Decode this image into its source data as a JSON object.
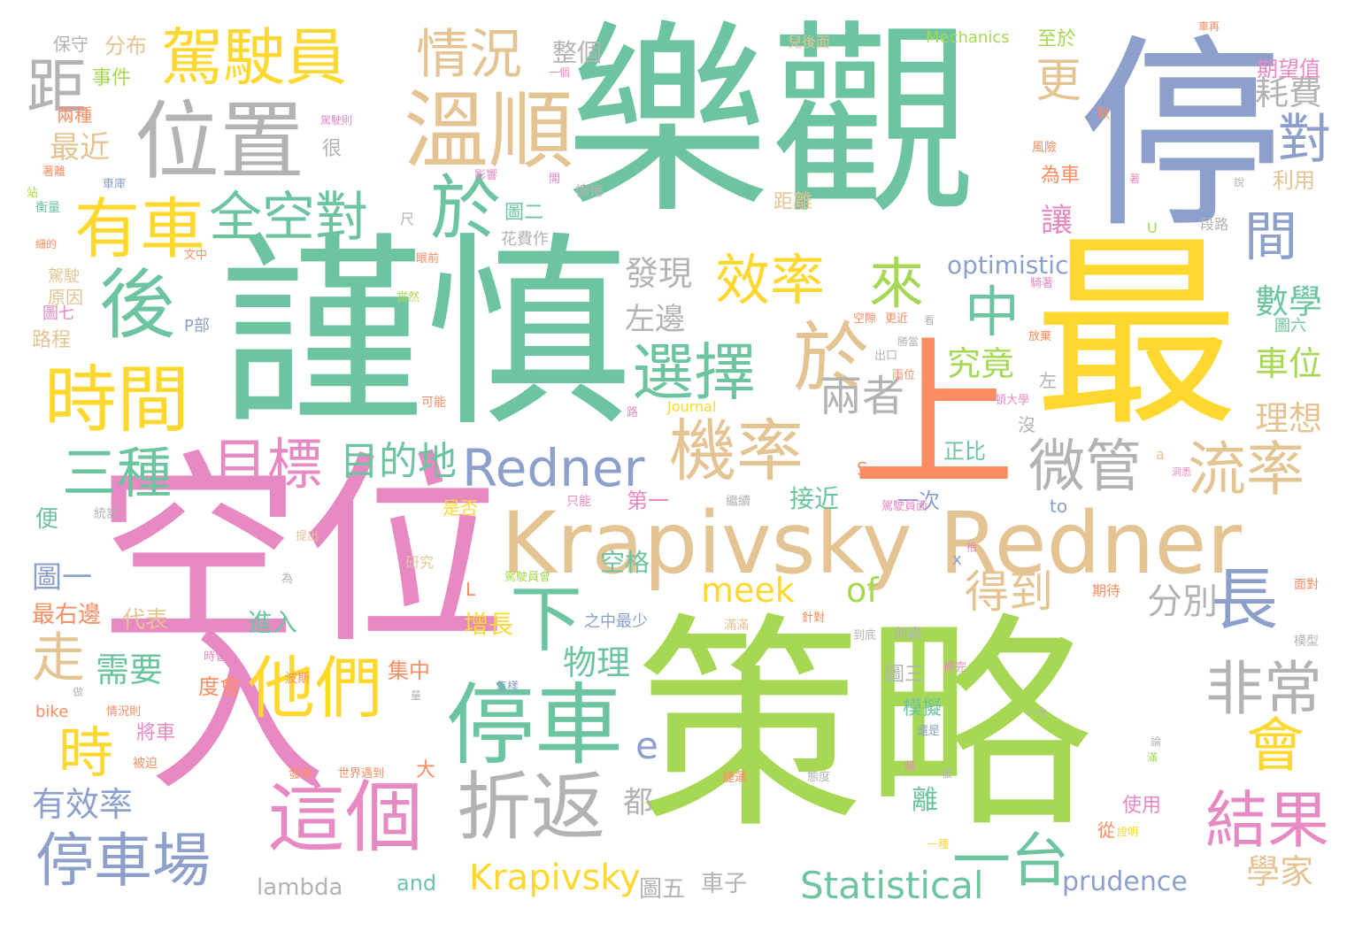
{
  "palette": {
    "green": "#6cc4a0",
    "yellow": "#fed82f",
    "lime": "#a6d854",
    "pink": "#e78ac3",
    "blue": "#8da0cb",
    "tan": "#e5c494",
    "gray": "#b3b3b3",
    "orange": "#fc8d62"
  },
  "words": [
    {
      "text": "樂觀",
      "color": "green"
    },
    {
      "text": "停",
      "color": "blue"
    },
    {
      "text": "謹慎",
      "color": "green"
    },
    {
      "text": "最",
      "color": "yellow"
    },
    {
      "text": "上",
      "color": "orange"
    },
    {
      "text": "空位",
      "color": "pink"
    },
    {
      "text": "策略",
      "color": "lime"
    },
    {
      "text": "入",
      "color": "pink"
    },
    {
      "text": "Krapivsky Redner",
      "color": "tan"
    },
    {
      "text": "位置",
      "color": "gray"
    },
    {
      "text": "溫順",
      "color": "tan"
    },
    {
      "text": "駕駛員",
      "color": "yellow"
    },
    {
      "text": "情況",
      "color": "tan"
    },
    {
      "text": "距",
      "color": "gray"
    },
    {
      "text": "有車",
      "color": "yellow"
    },
    {
      "text": "全空對",
      "color": "green"
    },
    {
      "text": "於",
      "color": "green"
    },
    {
      "text": "後",
      "color": "green"
    },
    {
      "text": "時間",
      "color": "yellow"
    },
    {
      "text": "效率",
      "color": "yellow"
    },
    {
      "text": "來",
      "color": "lime"
    },
    {
      "text": "中",
      "color": "green"
    },
    {
      "text": "於",
      "color": "tan"
    },
    {
      "text": "選擇",
      "color": "green"
    },
    {
      "text": "Redner",
      "color": "blue"
    },
    {
      "text": "機率",
      "color": "tan"
    },
    {
      "text": "三種",
      "color": "green"
    },
    {
      "text": "目標",
      "color": "pink"
    },
    {
      "text": "目的地",
      "color": "green"
    },
    {
      "text": "兩者",
      "color": "gray"
    },
    {
      "text": "微管",
      "color": "gray"
    },
    {
      "text": "流率",
      "color": "tan"
    },
    {
      "text": "更",
      "color": "tan"
    },
    {
      "text": "對",
      "color": "blue"
    },
    {
      "text": "間",
      "color": "blue"
    },
    {
      "text": "耗費",
      "color": "gray"
    },
    {
      "text": "數學",
      "color": "green"
    },
    {
      "text": "車位",
      "color": "lime"
    },
    {
      "text": "理想",
      "color": "tan"
    },
    {
      "text": "究竟",
      "color": "lime"
    },
    {
      "text": "發現",
      "color": "gray"
    },
    {
      "text": "左邊",
      "color": "gray"
    },
    {
      "text": "optimistic",
      "color": "blue"
    },
    {
      "text": "他們",
      "color": "yellow"
    },
    {
      "text": "停車",
      "color": "green"
    },
    {
      "text": "下",
      "color": "green"
    },
    {
      "text": "長",
      "color": "blue"
    },
    {
      "text": "時",
      "color": "yellow"
    },
    {
      "text": "走",
      "color": "tan"
    },
    {
      "text": "這個",
      "color": "pink"
    },
    {
      "text": "折返",
      "color": "gray"
    },
    {
      "text": "停車場",
      "color": "blue"
    },
    {
      "text": "非常",
      "color": "gray"
    },
    {
      "text": "會",
      "color": "yellow"
    },
    {
      "text": "結果",
      "color": "pink"
    },
    {
      "text": "一台",
      "color": "green"
    },
    {
      "text": "得到",
      "color": "tan"
    },
    {
      "text": "分別",
      "color": "gray"
    },
    {
      "text": "meek",
      "color": "yellow"
    },
    {
      "text": "of",
      "color": "lime"
    },
    {
      "text": "物理",
      "color": "green"
    },
    {
      "text": "需要",
      "color": "green"
    },
    {
      "text": "有效率",
      "color": "blue"
    },
    {
      "text": "Statistical",
      "color": "green"
    },
    {
      "text": "Krapivsky",
      "color": "yellow"
    },
    {
      "text": "prudence",
      "color": "blue"
    },
    {
      "text": "學家",
      "color": "tan"
    },
    {
      "text": "lambda",
      "color": "gray"
    },
    {
      "text": "and",
      "color": "green"
    },
    {
      "text": "圖五",
      "color": "gray"
    },
    {
      "text": "車子",
      "color": "gray"
    },
    {
      "text": "e",
      "color": "blue"
    },
    {
      "text": "都",
      "color": "gray"
    },
    {
      "text": "圖一",
      "color": "blue"
    },
    {
      "text": "最右邊",
      "color": "orange"
    },
    {
      "text": "代表",
      "color": "tan"
    },
    {
      "text": "進入",
      "color": "green"
    },
    {
      "text": "增長",
      "color": "yellow"
    },
    {
      "text": "空格",
      "color": "green"
    },
    {
      "text": "接近",
      "color": "green"
    },
    {
      "text": "第一",
      "color": "pink"
    },
    {
      "text": "一次",
      "color": "blue"
    },
    {
      "text": "正比",
      "color": "green"
    },
    {
      "text": "保守",
      "color": "gray"
    },
    {
      "text": "分布",
      "color": "tan"
    },
    {
      "text": "事件",
      "color": "lime"
    },
    {
      "text": "最近",
      "color": "tan"
    },
    {
      "text": "兩種",
      "color": "orange"
    },
    {
      "text": "很",
      "color": "gray"
    },
    {
      "text": "原因",
      "color": "tan"
    },
    {
      "text": "駕駛",
      "color": "tan"
    },
    {
      "text": "圖七",
      "color": "pink"
    },
    {
      "text": "路程",
      "color": "tan"
    },
    {
      "text": "整個",
      "color": "gray"
    },
    {
      "text": "圖二",
      "color": "green"
    },
    {
      "text": "距離",
      "color": "tan"
    },
    {
      "text": "讓",
      "color": "pink"
    },
    {
      "text": "為車",
      "color": "orange"
    },
    {
      "text": "利用",
      "color": "tan"
    },
    {
      "text": "期望值",
      "color": "pink"
    },
    {
      "text": "Mechanics",
      "color": "lime"
    },
    {
      "text": "至於",
      "color": "lime"
    },
    {
      "text": "兒後面",
      "color": "tan"
    },
    {
      "text": "便",
      "color": "green"
    },
    {
      "text": "圖三",
      "color": "gray"
    },
    {
      "text": "模擬",
      "color": "green"
    },
    {
      "text": "離",
      "color": "green"
    },
    {
      "text": "使用",
      "color": "pink"
    },
    {
      "text": "大",
      "color": "orange"
    },
    {
      "text": "集中",
      "color": "orange"
    },
    {
      "text": "度會",
      "color": "orange"
    },
    {
      "text": "將車",
      "color": "pink"
    },
    {
      "text": "是否",
      "color": "yellow"
    },
    {
      "text": "to",
      "color": "blue"
    },
    {
      "text": "之中最少",
      "color": "blue"
    },
    {
      "text": "Journal",
      "color": "yellow"
    },
    {
      "text": "S",
      "color": "orange"
    },
    {
      "text": "左",
      "color": "gray"
    },
    {
      "text": "沒",
      "color": "gray"
    },
    {
      "text": "P部",
      "color": "blue"
    },
    {
      "text": "圖六",
      "color": "green"
    },
    {
      "text": "U",
      "color": "lime"
    },
    {
      "text": "x",
      "color": "blue"
    },
    {
      "text": "L",
      "color": "orange"
    },
    {
      "text": "a",
      "color": "tan"
    },
    {
      "text": "bike",
      "color": "orange"
    },
    {
      "text": "一個",
      "color": "pink"
    },
    {
      "text": "車再",
      "color": "orange"
    },
    {
      "text": "風險",
      "color": "orange"
    },
    {
      "text": "影響",
      "color": "pink"
    },
    {
      "text": "懊悔",
      "color": "gray"
    },
    {
      "text": "花費作",
      "color": "gray"
    },
    {
      "text": "尺",
      "color": "gray"
    },
    {
      "text": "眼前",
      "color": "orange"
    },
    {
      "text": "當然",
      "color": "lime"
    },
    {
      "text": "段路",
      "color": "gray"
    },
    {
      "text": "騎著",
      "color": "pink"
    },
    {
      "text": "更近",
      "color": "orange"
    },
    {
      "text": "空隙",
      "color": "orange"
    },
    {
      "text": "看",
      "color": "gray"
    },
    {
      "text": "放棄",
      "color": "orange"
    },
    {
      "text": "雨位",
      "color": "orange"
    },
    {
      "text": "出口",
      "color": "gray"
    },
    {
      "text": "頓大學",
      "color": "pink"
    },
    {
      "text": "可能",
      "color": "orange"
    },
    {
      "text": "路",
      "color": "pink"
    },
    {
      "text": "只能",
      "color": "pink"
    },
    {
      "text": "繼續",
      "color": "gray"
    },
    {
      "text": "駕駛員面",
      "color": "pink"
    },
    {
      "text": "研究",
      "color": "tan"
    },
    {
      "text": "提出",
      "color": "tan"
    },
    {
      "text": "駕駛員會",
      "color": "lime"
    },
    {
      "text": "期待",
      "color": "orange"
    },
    {
      "text": "面對",
      "color": "orange"
    },
    {
      "text": "模型",
      "color": "gray"
    },
    {
      "text": "何處",
      "color": "gray"
    },
    {
      "text": "到底",
      "color": "gray"
    },
    {
      "text": "針對",
      "color": "orange"
    },
    {
      "text": "滿滿",
      "color": "tan"
    },
    {
      "text": "停完",
      "color": "pink"
    },
    {
      "text": "時會",
      "color": "pink"
    },
    {
      "text": "波斯",
      "color": "orange"
    },
    {
      "text": "怎樣",
      "color": "blue"
    },
    {
      "text": "統計",
      "color": "gray"
    },
    {
      "text": "情況則",
      "color": "orange"
    },
    {
      "text": "發表",
      "color": "orange"
    },
    {
      "text": "世界遇到",
      "color": "orange"
    },
    {
      "text": "被迫",
      "color": "orange"
    },
    {
      "text": "捷運",
      "color": "orange"
    },
    {
      "text": "態度",
      "color": "gray"
    },
    {
      "text": "還是",
      "color": "blue"
    },
    {
      "text": "從",
      "color": "orange"
    },
    {
      "text": "證明",
      "color": "yellow"
    },
    {
      "text": "一種",
      "color": "yellow"
    },
    {
      "text": "一大",
      "color": "gray"
    },
    {
      "text": "論",
      "color": "gray"
    },
    {
      "text": "滿",
      "color": "lime"
    },
    {
      "text": "騎",
      "color": "pink"
    },
    {
      "text": "被",
      "color": "gray"
    },
    {
      "text": "站",
      "color": "lime"
    },
    {
      "text": "著離",
      "color": "orange"
    },
    {
      "text": "衡量",
      "color": "green"
    },
    {
      "text": "車庫",
      "color": "blue"
    },
    {
      "text": "細的",
      "color": "orange"
    },
    {
      "text": "文中",
      "color": "orange"
    },
    {
      "text": "駕駛則",
      "color": "pink"
    },
    {
      "text": "取",
      "color": "orange"
    },
    {
      "text": "著",
      "color": "pink"
    },
    {
      "text": "說",
      "color": "gray"
    },
    {
      "text": "開",
      "color": "pink"
    },
    {
      "text": "為",
      "color": "gray"
    },
    {
      "text": "做",
      "color": "gray"
    },
    {
      "text": "抬",
      "color": "pink"
    },
    {
      "text": "洞悉",
      "color": "pink"
    },
    {
      "text": "量",
      "color": "gray"
    },
    {
      "text": "面",
      "color": "pink"
    },
    {
      "text": "勝當",
      "color": "gray"
    }
  ]
}
